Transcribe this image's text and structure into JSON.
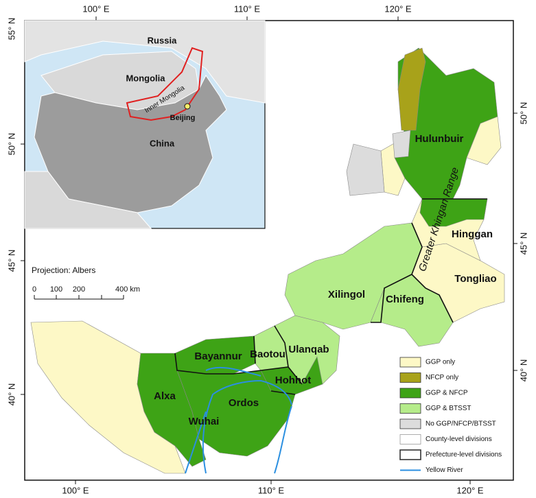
{
  "graticule": {
    "top": [
      "100° E",
      "110° E",
      "120° E"
    ],
    "bottom": [
      "100° E",
      "110° E",
      "120° E"
    ],
    "left": [
      "55° N",
      "50° N",
      "45° N",
      "40° N"
    ],
    "right": [
      "50° N",
      "45° N",
      "40° N"
    ]
  },
  "inset": {
    "labels": [
      "Russia",
      "Mongolia",
      "Inner Mongolia",
      "Beijing",
      "China"
    ]
  },
  "regions": [
    "Hulunbuir",
    "Hinggan",
    "Tongliao",
    "Chifeng",
    "Xilingol",
    "Ulanqab",
    "Baotou",
    "Bayannur",
    "Hohhot",
    "Ordos",
    "Alxa",
    "Wuhai"
  ],
  "feature_label": "Greater Khingan Range",
  "projection": "Projection: Albers",
  "scale_bar": [
    "0",
    "100",
    "200",
    "400 km"
  ],
  "legend": [
    {
      "label": "GGP only",
      "color": "#fdf8c6"
    },
    {
      "label": "NFCP only",
      "color": "#a8a21a"
    },
    {
      "label": "GGP & NFCP",
      "color": "#3ea316"
    },
    {
      "label": "GGP & BTSST",
      "color": "#b5ec8a"
    },
    {
      "label": "No GGP/NFCP/BTSST",
      "color": "#dcdcdc"
    },
    {
      "label": "County-level divisions",
      "color": "#ffffff"
    },
    {
      "label": "Prefecture-level divisions",
      "color": "#ffffff"
    },
    {
      "label": "Yellow River",
      "color": "#2b8fe0"
    }
  ]
}
